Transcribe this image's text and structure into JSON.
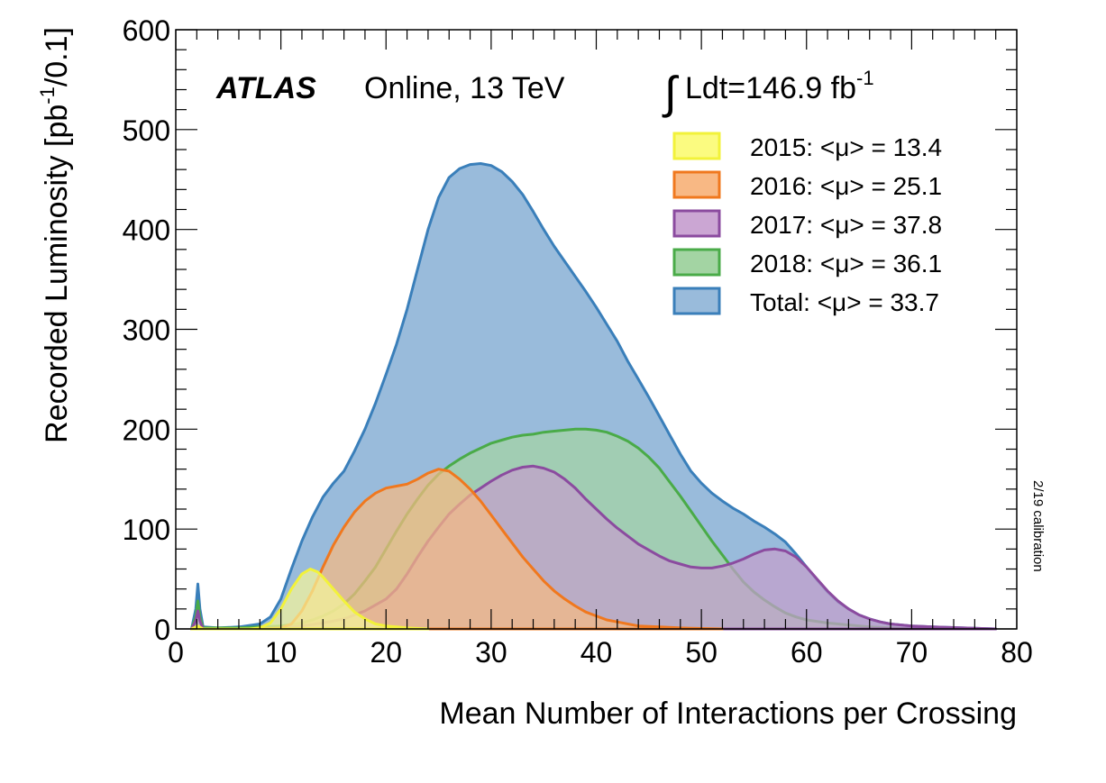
{
  "chart_data": {
    "type": "area",
    "experiment": "ATLAS",
    "subtitle": "Online, 13 TeV",
    "lumi_text": "Ldt=146.9 fb",
    "lumi_exp": "-1",
    "integral_symbol": "∫",
    "side_note": "2/19 calibration",
    "xlabel": "Mean Number of Interactions per Crossing",
    "ylabel_main": "Recorded Luminosity [pb",
    "ylabel_exp": "-1",
    "ylabel_end": "/0.1]",
    "xlim": [
      0,
      80
    ],
    "ylim": [
      0,
      600
    ],
    "x_ticks": [
      0,
      10,
      20,
      30,
      40,
      50,
      60,
      70,
      80
    ],
    "y_ticks": [
      0,
      100,
      200,
      300,
      400,
      500,
      600
    ],
    "legend_position": "top-right",
    "series": [
      {
        "name": "Total: <μ> = 33.7",
        "fill": "#99bbdb",
        "stroke": "#3a7fba",
        "points": [
          [
            1.5,
            0
          ],
          [
            1.9,
            20
          ],
          [
            2.1,
            45
          ],
          [
            2.3,
            20
          ],
          [
            2.6,
            2
          ],
          [
            4,
            1
          ],
          [
            6,
            2
          ],
          [
            8,
            5
          ],
          [
            9,
            12
          ],
          [
            10,
            30
          ],
          [
            11,
            60
          ],
          [
            12,
            88
          ],
          [
            13,
            112
          ],
          [
            14,
            132
          ],
          [
            15,
            146
          ],
          [
            16,
            158
          ],
          [
            17,
            178
          ],
          [
            18,
            200
          ],
          [
            19,
            226
          ],
          [
            20,
            255
          ],
          [
            21,
            285
          ],
          [
            22,
            320
          ],
          [
            23,
            360
          ],
          [
            24,
            400
          ],
          [
            25,
            432
          ],
          [
            26,
            452
          ],
          [
            27,
            461
          ],
          [
            28,
            465
          ],
          [
            29,
            466
          ],
          [
            30,
            464
          ],
          [
            31,
            458
          ],
          [
            32,
            448
          ],
          [
            33,
            435
          ],
          [
            34,
            418
          ],
          [
            35,
            400
          ],
          [
            36,
            383
          ],
          [
            37,
            368
          ],
          [
            38,
            353
          ],
          [
            39,
            338
          ],
          [
            40,
            322
          ],
          [
            41,
            305
          ],
          [
            42,
            288
          ],
          [
            43,
            268
          ],
          [
            44,
            250
          ],
          [
            45,
            232
          ],
          [
            46,
            213
          ],
          [
            47,
            194
          ],
          [
            48,
            175
          ],
          [
            49,
            158
          ],
          [
            50,
            146
          ],
          [
            51,
            136
          ],
          [
            52,
            128
          ],
          [
            53,
            121
          ],
          [
            54,
            115
          ],
          [
            55,
            108
          ],
          [
            56,
            102
          ],
          [
            57,
            95
          ],
          [
            58,
            87
          ],
          [
            59,
            75
          ],
          [
            60,
            62
          ],
          [
            61,
            49
          ],
          [
            62,
            37
          ],
          [
            63,
            27
          ],
          [
            64,
            20
          ],
          [
            65,
            14
          ],
          [
            66,
            10
          ],
          [
            67,
            7
          ],
          [
            68,
            5
          ],
          [
            69,
            4
          ],
          [
            70,
            3
          ],
          [
            72,
            2
          ],
          [
            75,
            1
          ],
          [
            78,
            0
          ]
        ]
      },
      {
        "name": "2018: <μ> = 36.1",
        "fill": "#a3d4a3",
        "stroke": "#4aab48",
        "points": [
          [
            1.5,
            0
          ],
          [
            1.9,
            12
          ],
          [
            2.1,
            28
          ],
          [
            2.3,
            12
          ],
          [
            2.6,
            1
          ],
          [
            4,
            1
          ],
          [
            6,
            1
          ],
          [
            8,
            2
          ],
          [
            10,
            3
          ],
          [
            12,
            6
          ],
          [
            13,
            9
          ],
          [
            14,
            13
          ],
          [
            15,
            18
          ],
          [
            16,
            25
          ],
          [
            17,
            35
          ],
          [
            18,
            48
          ],
          [
            19,
            62
          ],
          [
            20,
            80
          ],
          [
            21,
            98
          ],
          [
            22,
            115
          ],
          [
            23,
            130
          ],
          [
            24,
            144
          ],
          [
            25,
            155
          ],
          [
            26,
            163
          ],
          [
            27,
            170
          ],
          [
            28,
            176
          ],
          [
            29,
            181
          ],
          [
            30,
            186
          ],
          [
            31,
            189
          ],
          [
            32,
            192
          ],
          [
            33,
            194
          ],
          [
            34,
            195
          ],
          [
            35,
            197
          ],
          [
            36,
            198
          ],
          [
            37,
            199
          ],
          [
            38,
            200
          ],
          [
            39,
            200
          ],
          [
            40,
            199
          ],
          [
            41,
            197
          ],
          [
            42,
            193
          ],
          [
            43,
            188
          ],
          [
            44,
            181
          ],
          [
            45,
            172
          ],
          [
            46,
            161
          ],
          [
            47,
            147
          ],
          [
            48,
            133
          ],
          [
            49,
            118
          ],
          [
            50,
            103
          ],
          [
            51,
            88
          ],
          [
            52,
            74
          ],
          [
            53,
            60
          ],
          [
            54,
            47
          ],
          [
            55,
            37
          ],
          [
            56,
            29
          ],
          [
            57,
            22
          ],
          [
            58,
            16
          ],
          [
            59,
            12
          ],
          [
            60,
            9
          ],
          [
            62,
            6
          ],
          [
            64,
            4
          ],
          [
            66,
            2
          ],
          [
            68,
            1
          ],
          [
            70,
            0
          ]
        ]
      },
      {
        "name": "2017: <μ> = 37.8",
        "fill": "#c49fcc",
        "stroke": "#8b4b9f",
        "points": [
          [
            1.5,
            0
          ],
          [
            1.9,
            8
          ],
          [
            2.1,
            18
          ],
          [
            2.3,
            8
          ],
          [
            2.6,
            0
          ],
          [
            5,
            0
          ],
          [
            8,
            0
          ],
          [
            10,
            1
          ],
          [
            12,
            3
          ],
          [
            14,
            6
          ],
          [
            16,
            10
          ],
          [
            18,
            18
          ],
          [
            20,
            30
          ],
          [
            21,
            40
          ],
          [
            22,
            55
          ],
          [
            23,
            72
          ],
          [
            24,
            88
          ],
          [
            25,
            102
          ],
          [
            26,
            115
          ],
          [
            27,
            125
          ],
          [
            28,
            134
          ],
          [
            29,
            141
          ],
          [
            30,
            148
          ],
          [
            31,
            154
          ],
          [
            32,
            159
          ],
          [
            33,
            162
          ],
          [
            34,
            163
          ],
          [
            35,
            161
          ],
          [
            36,
            157
          ],
          [
            37,
            150
          ],
          [
            38,
            141
          ],
          [
            39,
            130
          ],
          [
            40,
            120
          ],
          [
            41,
            110
          ],
          [
            42,
            101
          ],
          [
            43,
            93
          ],
          [
            44,
            85
          ],
          [
            45,
            79
          ],
          [
            46,
            73
          ],
          [
            47,
            68
          ],
          [
            48,
            65
          ],
          [
            49,
            62
          ],
          [
            50,
            61
          ],
          [
            51,
            61
          ],
          [
            52,
            63
          ],
          [
            53,
            66
          ],
          [
            54,
            70
          ],
          [
            55,
            75
          ],
          [
            56,
            79
          ],
          [
            57,
            80
          ],
          [
            58,
            78
          ],
          [
            59,
            72
          ],
          [
            60,
            62
          ],
          [
            61,
            50
          ],
          [
            62,
            38
          ],
          [
            63,
            28
          ],
          [
            64,
            20
          ],
          [
            65,
            14
          ],
          [
            66,
            10
          ],
          [
            67,
            7
          ],
          [
            68,
            5
          ],
          [
            70,
            3
          ],
          [
            72,
            2
          ],
          [
            75,
            1
          ],
          [
            78,
            0
          ]
        ]
      },
      {
        "name": "2016: <μ> = 25.1",
        "fill": "#f5ba82",
        "stroke": "#f0781e",
        "points": [
          [
            1.5,
            0
          ],
          [
            2.1,
            2
          ],
          [
            2.6,
            0
          ],
          [
            8,
            0
          ],
          [
            10,
            1
          ],
          [
            11,
            5
          ],
          [
            12,
            18
          ],
          [
            13,
            38
          ],
          [
            14,
            62
          ],
          [
            15,
            84
          ],
          [
            16,
            102
          ],
          [
            17,
            117
          ],
          [
            18,
            128
          ],
          [
            19,
            136
          ],
          [
            20,
            141
          ],
          [
            21,
            143
          ],
          [
            22,
            145
          ],
          [
            23,
            150
          ],
          [
            24,
            156
          ],
          [
            25,
            160
          ],
          [
            26,
            158
          ],
          [
            27,
            150
          ],
          [
            28,
            140
          ],
          [
            29,
            128
          ],
          [
            30,
            114
          ],
          [
            31,
            100
          ],
          [
            32,
            86
          ],
          [
            33,
            72
          ],
          [
            34,
            60
          ],
          [
            35,
            48
          ],
          [
            36,
            38
          ],
          [
            37,
            30
          ],
          [
            38,
            23
          ],
          [
            39,
            17
          ],
          [
            40,
            13
          ],
          [
            41,
            9
          ],
          [
            42,
            7
          ],
          [
            43,
            5
          ],
          [
            44,
            3
          ],
          [
            46,
            2
          ],
          [
            48,
            1
          ],
          [
            52,
            0
          ]
        ]
      },
      {
        "name": "2015: <μ> = 13.4",
        "fill": "#f4f49a",
        "stroke": "#f2f23a",
        "points": [
          [
            1.5,
            0
          ],
          [
            2.1,
            3
          ],
          [
            2.6,
            0
          ],
          [
            7,
            0
          ],
          [
            8,
            1
          ],
          [
            9,
            6
          ],
          [
            10,
            20
          ],
          [
            11,
            40
          ],
          [
            12,
            55
          ],
          [
            12.8,
            60
          ],
          [
            13.5,
            57
          ],
          [
            14,
            52
          ],
          [
            15,
            40
          ],
          [
            16,
            28
          ],
          [
            17,
            17
          ],
          [
            18,
            10
          ],
          [
            19,
            5
          ],
          [
            20,
            3
          ],
          [
            21,
            2
          ],
          [
            22,
            1
          ],
          [
            24,
            0
          ]
        ]
      }
    ],
    "legend": [
      {
        "label": "2015: <μ> = 13.4",
        "fill": "#fbfb80",
        "stroke": "#f2f23a"
      },
      {
        "label": "2016: <μ> = 25.1",
        "fill": "#f8b884",
        "stroke": "#f0781e"
      },
      {
        "label": "2017: <μ> = 37.8",
        "fill": "#cba6d3",
        "stroke": "#8b4b9f"
      },
      {
        "label": "2018: <μ> = 36.1",
        "fill": "#a3d4a3",
        "stroke": "#4aab48"
      },
      {
        "label": "Total: <μ> = 33.7",
        "fill": "#99bbdb",
        "stroke": "#3a7fba"
      }
    ]
  }
}
